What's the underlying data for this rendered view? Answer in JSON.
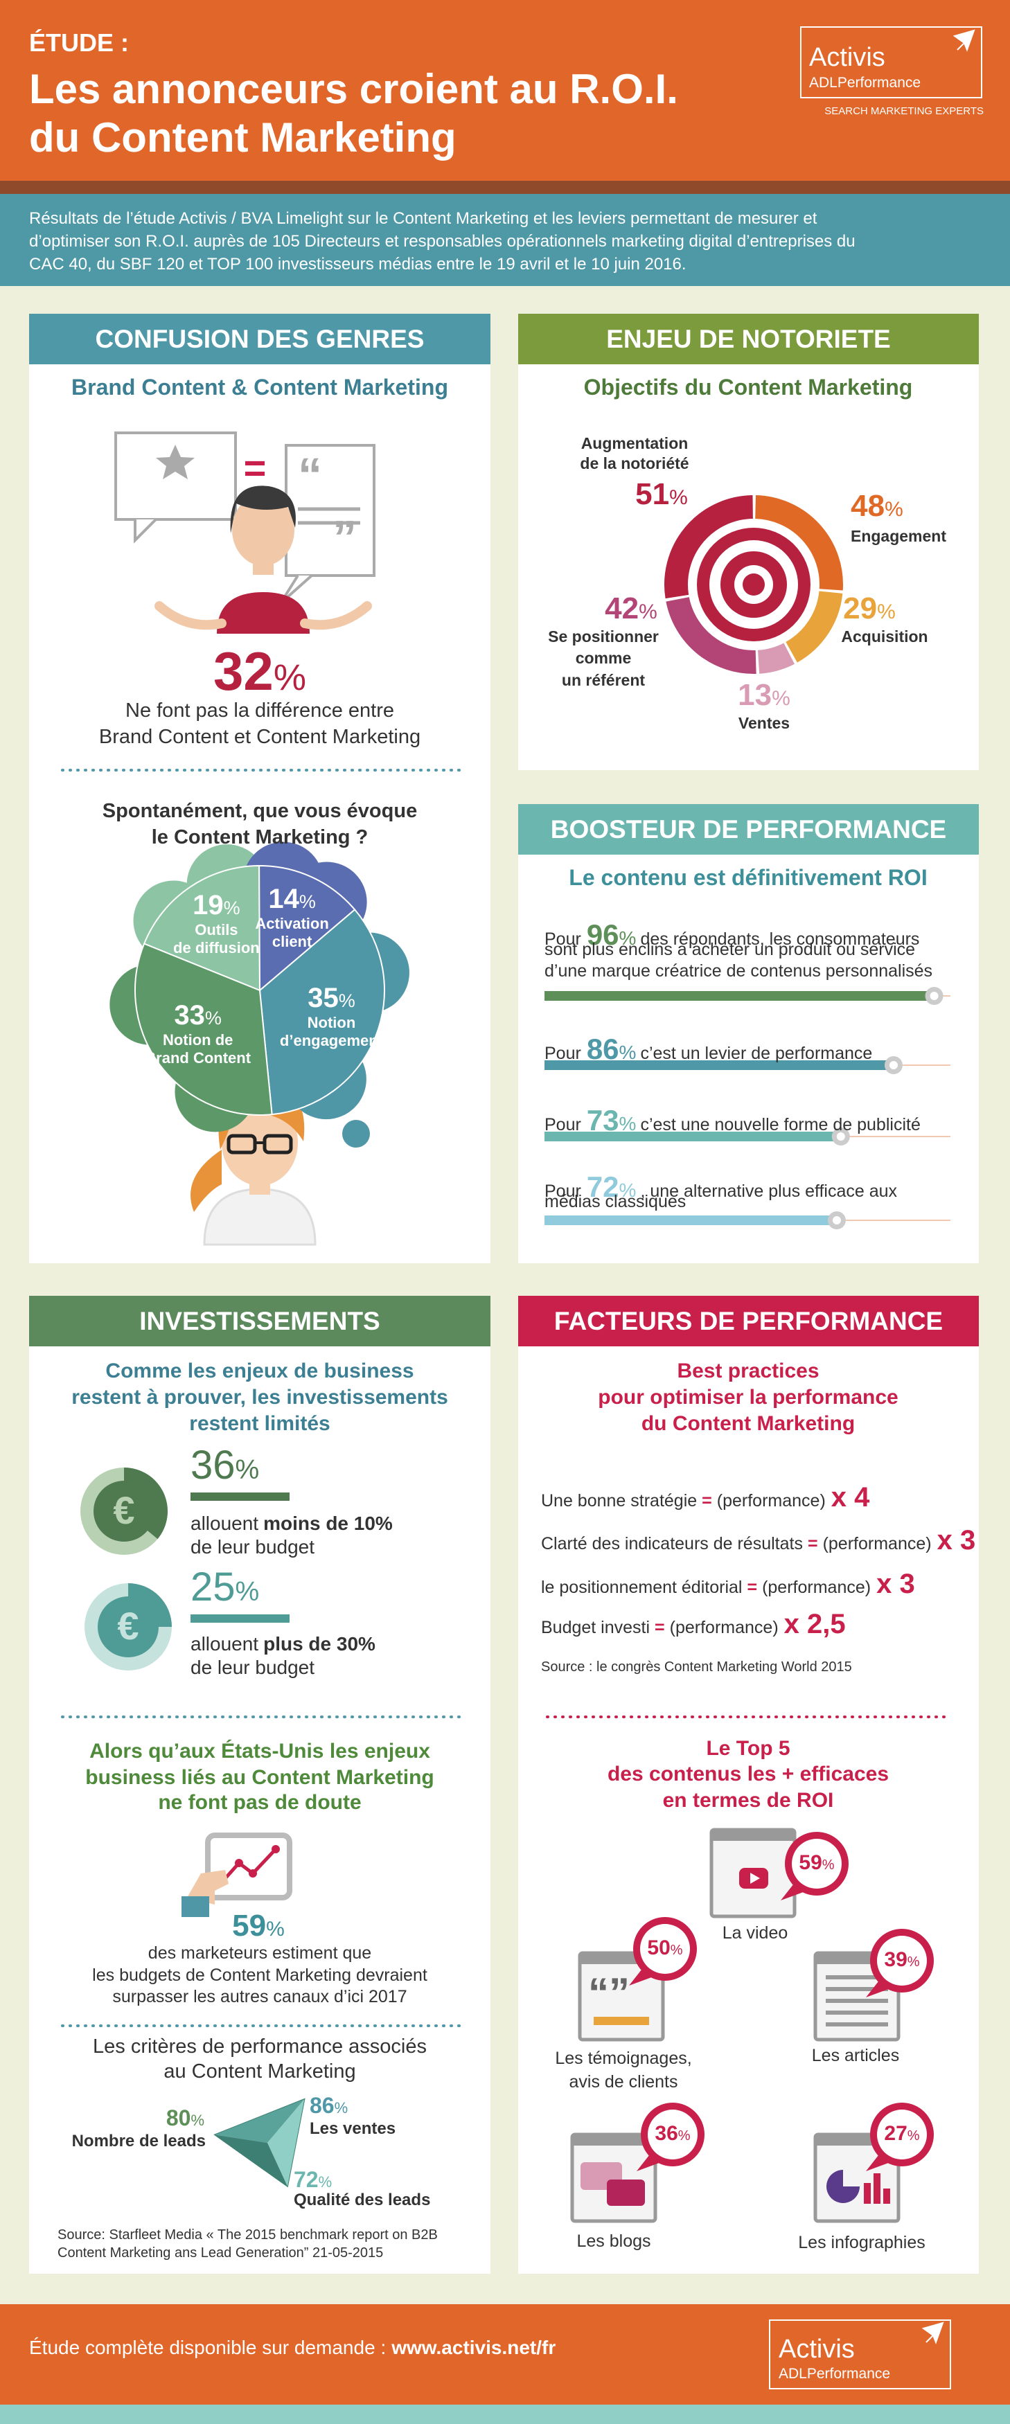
{
  "unit": "%",
  "header": {
    "kicker": "ÉTUDE :",
    "title": [
      "Les annonceurs croient au R.O.I.",
      "du Content Marketing"
    ]
  },
  "logo": {
    "name": "Activis",
    "sub": "ADLPerformance",
    "tagline": "SEARCH MARKETING EXPERTS"
  },
  "intro": [
    "Résultats de l’étude Activis / BVA Limelight sur le Content Marketing et les leviers permettant de mesurer et",
    "d’optimiser son R.O.I. auprès de 105 Directeurs et responsables opérationnels marketing digital d’entreprises du",
    "CAC 40, du SBF 120 et TOP 100 investisseurs médias entre le 19 avril et le 10  juin 2016."
  ],
  "confusion": {
    "title": "CONFUSION DES GENRES",
    "subtitle": "Brand Content & Content Marketing",
    "equals": "=",
    "stat": {
      "value": 32,
      "text": [
        "Ne font pas la différence entre",
        "Brand Content et Content Marketing"
      ]
    },
    "question": [
      "Spontanément, que vous évoque",
      "le Content Marketing ?"
    ],
    "answers": [
      {
        "value": 19,
        "label": [
          "Outils",
          "de diffusion"
        ],
        "color": "#8cc4a4"
      },
      {
        "value": 14,
        "label": [
          "Activation",
          "client"
        ],
        "color": "#5a6db0"
      },
      {
        "value": 35,
        "label": [
          "Notion",
          "d’engagement"
        ],
        "color": "#4f97a6"
      },
      {
        "value": 33,
        "label": [
          "Notion de",
          "Brand Content"
        ],
        "color": "#5c9868"
      }
    ]
  },
  "enjeu": {
    "title": "ENJEU DE NOTORIETE",
    "subtitle": "Objectifs du Content Marketing",
    "goals": [
      {
        "value": 51,
        "label": [
          "Augmentation",
          "de la notoriété"
        ],
        "color": "#b5213f"
      },
      {
        "value": 48,
        "label": [
          "Engagement"
        ],
        "color": "#e06a25"
      },
      {
        "value": 29,
        "label": [
          "Acquisition"
        ],
        "color": "#e8a33a"
      },
      {
        "value": 13,
        "label": [
          "Ventes"
        ],
        "color": "#d89bb3"
      },
      {
        "value": 42,
        "label": [
          "Se positionner",
          "comme",
          "un référent"
        ],
        "color": "#b34476"
      }
    ]
  },
  "boost": {
    "title": "BOOSTEUR DE PERFORMANCE",
    "subtitle": "Le contenu est définitivement ROI",
    "lead": "Pour",
    "items": [
      {
        "value": 96,
        "text": [
          "des répondants, les consommateurs",
          "sont plus enclins à acheter un produit ou service",
          "d’une marque créatrice de contenus personnalisés"
        ],
        "color": "#5e8f58"
      },
      {
        "value": 86,
        "text": [
          "c’est un levier de performance"
        ],
        "color": "#4f98a8"
      },
      {
        "value": 73,
        "text": [
          "c’est une nouvelle forme de publicité"
        ],
        "color": "#6cb6b0"
      },
      {
        "value": 72,
        "text": [
          ", une alternative plus efficace aux",
          "médias classiques"
        ],
        "color": "#8fcbdc"
      }
    ]
  },
  "invest": {
    "title": "INVESTISSEMENTS",
    "subtitle": [
      "Comme les enjeux de business",
      "restent à prouver, les investissements",
      "restent limités"
    ],
    "currency": "€",
    "items": [
      {
        "value": 36,
        "pre": "allouent",
        "bold": "moins de 10%",
        "post": "de leur budget",
        "color": "#4f7a4f",
        "light": "#b9d1b3"
      },
      {
        "value": 25,
        "pre": "allouent",
        "bold": "plus de 30%",
        "post": "de leur budget",
        "color": "#4f9b96",
        "light": "#c6e2dd"
      }
    ],
    "us": {
      "text": [
        "Alors qu’aux États-Unis les enjeux",
        "business liés au Content Marketing",
        "ne font pas de doute"
      ],
      "value": 59,
      "desc": [
        "des marketeurs estiment que",
        "les budgets de Content Marketing devraient",
        "surpasser les autres canaux d’ici 2017"
      ]
    },
    "criteria": {
      "title": [
        "Les critères de performance associés",
        "au Content Marketing"
      ],
      "items": [
        {
          "value": 80,
          "label": "Nombre de leads"
        },
        {
          "value": 86,
          "label": "Les ventes"
        },
        {
          "value": 72,
          "label": "Qualité des leads"
        }
      ]
    },
    "source": [
      "Source: Starfleet Media « The 2015 benchmark report on B2B",
      "Content Marketing ans Lead Generation” 21-05-2015"
    ]
  },
  "facteurs": {
    "title": "FACTEURS DE PERFORMANCE",
    "subtitle": [
      "Best practices",
      "pour optimiser la performance",
      "du Content Marketing"
    ],
    "equals": "=",
    "perf": "(performance)",
    "items": [
      {
        "label": "Une bonne stratégie",
        "factor": "x 4"
      },
      {
        "label": "Clarté des indicateurs de résultats",
        "factor": "x 3"
      },
      {
        "label": "le positionnement éditorial",
        "factor": "x 3"
      },
      {
        "label": "Budget investi",
        "factor": "x 2,5"
      }
    ],
    "source": "Source : le congrès Content Marketing World 2015",
    "top_title": [
      "Le Top 5",
      "des contenus les + efficaces",
      "en termes de ROI"
    ],
    "top": [
      {
        "label": [
          "La video"
        ],
        "value": 59
      },
      {
        "label": [
          "Les témoignages,",
          "avis de clients"
        ],
        "value": 50
      },
      {
        "label": [
          "Les articles"
        ],
        "value": 39
      },
      {
        "label": [
          "Les blogs"
        ],
        "value": 36
      },
      {
        "label": [
          "Les infographies"
        ],
        "value": 27
      }
    ]
  },
  "footer": {
    "text": "Étude complète disponible sur demande :",
    "link": "www.activis.net/fr"
  }
}
